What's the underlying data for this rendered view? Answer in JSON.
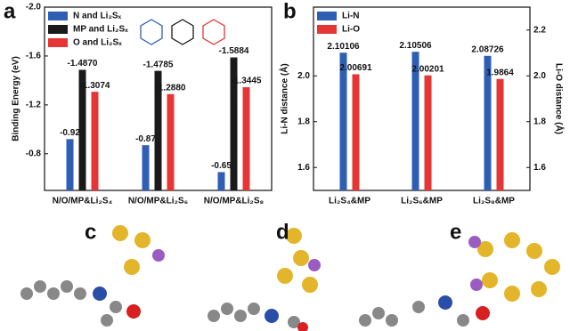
{
  "chart_data": [
    {
      "type": "bar",
      "panel_label": "a",
      "y_label": "Binding Energy (eV)",
      "categories": [
        "N/O/MP&Li₂S₄",
        "N/O/MP&Li₂S₆",
        "N/O/MP&Li₂S₈"
      ],
      "series": [
        {
          "name": "N and Li₂Sₓ",
          "color": "#2f5fb5",
          "values": [
            -0.92,
            -0.87,
            -0.65
          ]
        },
        {
          "name": "MP and Li₂Sₓ",
          "color": "#1a1a1a",
          "values": [
            -1.487,
            -1.4785,
            -1.5884
          ],
          "value_labels": [
            "-1.4870",
            "-1.4785",
            "-1.5884"
          ]
        },
        {
          "name": "O and Li₂Sₓ",
          "color": "#e53535",
          "values": [
            -1.3074,
            -1.288,
            -1.3445
          ],
          "value_labels": [
            "-1.3074",
            "-1.2880",
            "-1.3445"
          ]
        }
      ],
      "ylim": [
        -0.5,
        -2.0
      ],
      "yticks": [
        {
          "value": -2,
          "label": "-2.0"
        },
        -1.6,
        -1.2,
        -0.8
      ]
    },
    {
      "type": "bar",
      "panel_label": "b",
      "y_label": "Li-N distance (Å)",
      "y2_label": "Li-O distance (Å)",
      "categories": [
        "Li₂S₄&MP",
        "Li₂S₆&MP",
        "Li₂S₈&MP"
      ],
      "series": [
        {
          "name": "Li-N",
          "color": "#2f5fb5",
          "values": [
            2.10106,
            2.10506,
            2.08726
          ]
        },
        {
          "name": "Li-O",
          "color": "#e53535",
          "axis": "y2",
          "values": [
            2.00691,
            2.00201,
            1.9864
          ]
        }
      ],
      "ylim": [
        1.5,
        2.3
      ],
      "yticks": [
        1.6,
        1.8,
        {
          "value": 2,
          "label": "2.0"
        }
      ],
      "y2lim": [
        1.5,
        2.3
      ],
      "y2ticks": [
        1.6,
        1.8,
        {
          "value": 2,
          "label": "2.0"
        },
        2.2
      ]
    }
  ],
  "panel_labels": [
    "c",
    "d",
    "e"
  ]
}
